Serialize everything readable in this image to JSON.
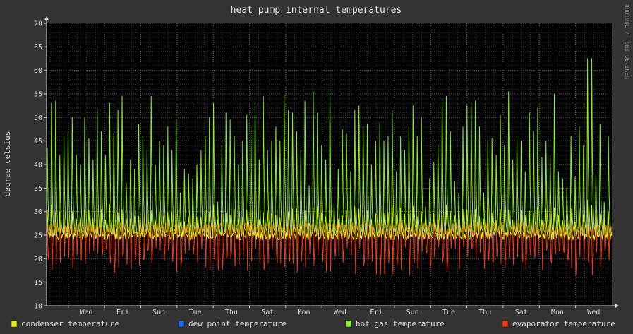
{
  "chart_data": {
    "type": "line",
    "title": "heat pump internal temperatures",
    "ylabel": "degree celsius",
    "watermark": "RRDTOOL / TOBI OETIKER",
    "ylim": [
      10,
      70
    ],
    "yticks": [
      10,
      15,
      20,
      25,
      30,
      35,
      40,
      45,
      50,
      55,
      60,
      65,
      70
    ],
    "x_start_day": -0.6,
    "x_end_day": 15,
    "x_tick_labels": [
      {
        "label": "Wed",
        "day": 0.5
      },
      {
        "label": "Fri",
        "day": 1.5
      },
      {
        "label": "Sun",
        "day": 2.5
      },
      {
        "label": "Tue",
        "day": 3.5
      },
      {
        "label": "Thu",
        "day": 4.5
      },
      {
        "label": "Sat",
        "day": 5.5
      },
      {
        "label": "Mon",
        "day": 6.5
      },
      {
        "label": "Wed",
        "day": 7.5
      },
      {
        "label": "Fri",
        "day": 8.5
      },
      {
        "label": "Sun",
        "day": 9.5
      },
      {
        "label": "Tue",
        "day": 10.5
      },
      {
        "label": "Thu",
        "day": 11.5
      },
      {
        "label": "Sat",
        "day": 12.5
      },
      {
        "label": "Mon",
        "day": 13.5
      },
      {
        "label": "Wed",
        "day": 14.5
      }
    ],
    "legend_position": "bottom",
    "grid": true,
    "series": [
      {
        "name": "condenser temperature",
        "color": "#e8f00f"
      },
      {
        "name": "dew point temperature",
        "color": "#1a6cf0"
      },
      {
        "name": "hot gas temperature",
        "color": "#8af02a"
      },
      {
        "name": "evaporator temperature",
        "color": "#f03a10"
      }
    ],
    "hot_gas_peaks": [
      43.5,
      53,
      53.5,
      42,
      46.5,
      47,
      50,
      42,
      40,
      50,
      45.5,
      41,
      52,
      47,
      42,
      53,
      46.5,
      51.5,
      54.5,
      36,
      41,
      39,
      48.5,
      46,
      43,
      54.5,
      40,
      45,
      44,
      48,
      43,
      50,
      34,
      39,
      38,
      37,
      40,
      43,
      46,
      50,
      53,
      32,
      44,
      51,
      49.5,
      46,
      40,
      45,
      50.5,
      48,
      53,
      41,
      54.5,
      43,
      45,
      48,
      45,
      55,
      51.5,
      51,
      47,
      43,
      53.5,
      35.5,
      55.5,
      51,
      44,
      41,
      55.5,
      31.5,
      39,
      47.5,
      46.5,
      38.5,
      51.5,
      52.5,
      48,
      48.5,
      40,
      45,
      49,
      45,
      46,
      51.5,
      38.5,
      46,
      43,
      48,
      52.5,
      46,
      50,
      31,
      37,
      40.5,
      44.5,
      54,
      54.5,
      47,
      36.5,
      34,
      48,
      52.5,
      53,
      53.5,
      48,
      34,
      45,
      45.5,
      42,
      50.5,
      44,
      55.5,
      41,
      46,
      45,
      38.5,
      51,
      47,
      52,
      41.5,
      45,
      42,
      55,
      38.5,
      37,
      35,
      46,
      37.5,
      48,
      44,
      62.5,
      62.5,
      38,
      48.5,
      32,
      46
    ]
  }
}
